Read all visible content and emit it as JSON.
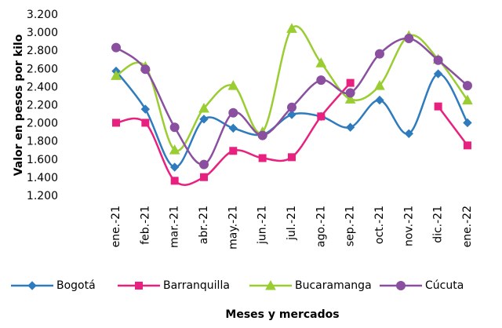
{
  "chart_data": {
    "type": "line",
    "y_label": "Valor en pesos por kilo",
    "x_label": "Meses  y mercados",
    "categories": [
      "ene.-21",
      "feb.-21",
      "mar.-21",
      "abr.-21",
      "may.-21",
      "jun.-21",
      "jul.-21",
      "ago.-21",
      "sep.-21",
      "oct.-21",
      "nov.-21",
      "dic.-21",
      "ene.-22"
    ],
    "series": [
      {
        "name": "Bogotá",
        "color": "#2e7bbd",
        "marker": "diamond",
        "values": [
          2580,
          2160,
          1520,
          2050,
          1950,
          1880,
          2100,
          2080,
          1960,
          2260,
          1890,
          2550,
          2010
        ]
      },
      {
        "name": "Barranquilla",
        "color": "#e8207f",
        "marker": "square",
        "values": [
          2010,
          2010,
          1370,
          1410,
          1700,
          1620,
          1630,
          2080,
          2450,
          null,
          null,
          2190,
          1760
        ]
      },
      {
        "name": "Bucaramanga",
        "color": "#9acd32",
        "marker": "triangle",
        "values": [
          2530,
          2630,
          1710,
          2170,
          2420,
          1910,
          3050,
          2670,
          2270,
          2420,
          2970,
          2710,
          2260
        ]
      },
      {
        "name": "Cúcuta",
        "color": "#8a4f9e",
        "marker": "circle",
        "values": [
          2840,
          2600,
          1960,
          1550,
          2120,
          1870,
          2180,
          2480,
          2340,
          2770,
          2940,
          2700,
          2420
        ]
      }
    ],
    "ylim": [
      1200,
      3200
    ],
    "yticks": [
      {
        "value": 1200,
        "label": "1.200"
      },
      {
        "value": 1400,
        "label": "1.400"
      },
      {
        "value": 1600,
        "label": "1.600"
      },
      {
        "value": 1800,
        "label": "1.800"
      },
      {
        "value": 2000,
        "label": "2.000"
      },
      {
        "value": 2200,
        "label": "2.200"
      },
      {
        "value": 2400,
        "label": "2.400"
      },
      {
        "value": 2600,
        "label": "2.600"
      },
      {
        "value": 2800,
        "label": "2.800"
      },
      {
        "value": 3000,
        "label": "3.000"
      },
      {
        "value": 3200,
        "label": "3.200"
      }
    ],
    "grid": false,
    "legend": "bottom"
  }
}
